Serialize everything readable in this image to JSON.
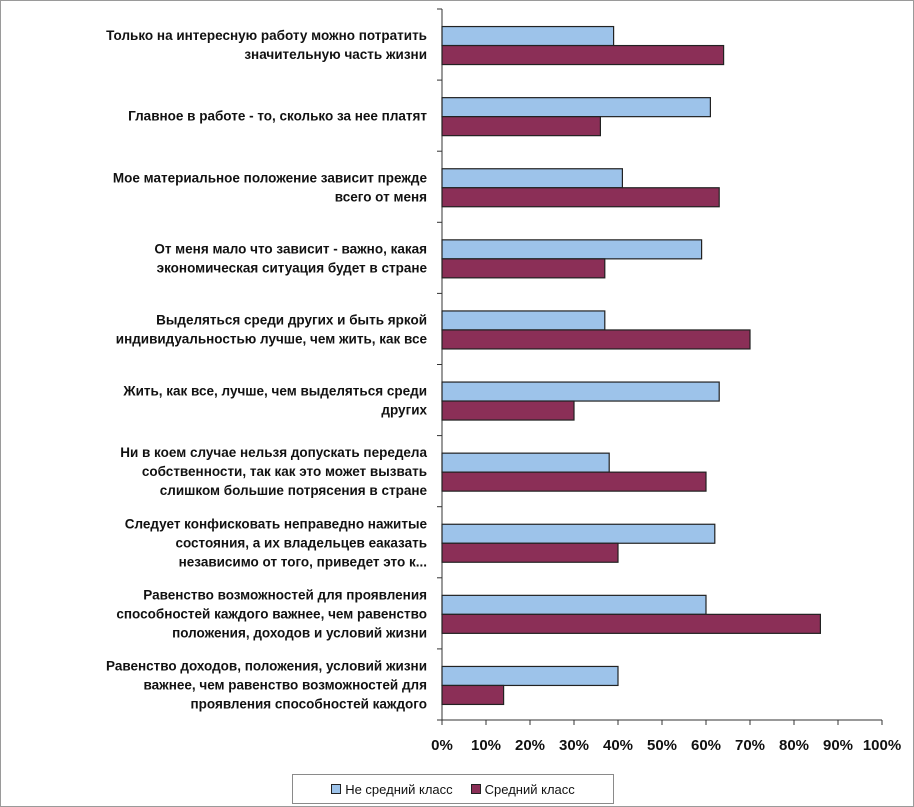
{
  "colors": {
    "not_middle_class": "#9dc3ea",
    "middle_class": "#8b2f57",
    "bar_stroke": "#222222",
    "axis": "#333333"
  },
  "chart_data": {
    "type": "bar",
    "orientation": "horizontal",
    "categories": [
      [
        "Только на интересную работу можно потратить",
        "значительную часть жизни"
      ],
      [
        "Главное в работе - то, сколько за нее платят"
      ],
      [
        "Мое материальное положение зависит прежде",
        "всего от меня"
      ],
      [
        "От меня мало что зависит - важно, какая",
        "экономическая ситуация будет в стране"
      ],
      [
        "Выделяться среди других и быть яркой",
        "индивидуальностью лучше, чем жить, как все"
      ],
      [
        "Жить, как все, лучше, чем выделяться среди",
        "других"
      ],
      [
        "Ни в коем случае нельзя допускать передела",
        "собственности, так как это может вызвать",
        "слишком большие потрясения в стране"
      ],
      [
        "Следует конфисковать неправедно нажитые",
        "состояния, а их владельцев еаказать",
        "независимо от того, приведет это к..."
      ],
      [
        "Равенство возможностей для проявления",
        "способностей каждого важнее, чем равенство",
        "положения, доходов и условий жизни"
      ],
      [
        "Равенство доходов, положения, условий жизни",
        "важнее, чем равенство возможностей для",
        "проявления способностей каждого"
      ]
    ],
    "series": [
      {
        "name": "Не средний класс",
        "values": [
          39,
          61,
          41,
          59,
          37,
          63,
          38,
          62,
          60,
          40
        ]
      },
      {
        "name": "Средний класс",
        "values": [
          64,
          36,
          63,
          37,
          70,
          30,
          60,
          40,
          86,
          14
        ]
      }
    ],
    "xlim": [
      0,
      100
    ],
    "x_ticks": [
      "0%",
      "10%",
      "20%",
      "30%",
      "40%",
      "50%",
      "60%",
      "70%",
      "80%",
      "90%",
      "100%"
    ],
    "legend_position": "bottom",
    "grid": false
  }
}
